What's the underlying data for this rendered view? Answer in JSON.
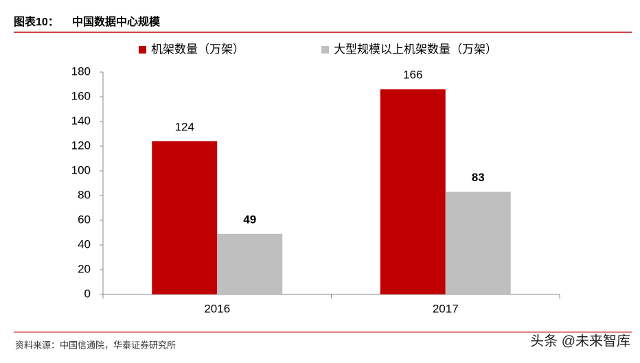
{
  "chart_data": {
    "type": "bar",
    "figure_label": "图表10：",
    "title": "中国数据中心规模",
    "categories": [
      "2016",
      "2017"
    ],
    "series": [
      {
        "name": "机架数量（万架）",
        "color": "#c00000",
        "label_weight": "normal",
        "values": [
          124,
          166
        ]
      },
      {
        "name": "大型规模以上机架数量（万架）",
        "color": "#bfbfbf",
        "label_weight": "bold",
        "values": [
          49,
          83
        ]
      }
    ],
    "ylim": [
      0,
      180
    ],
    "yticks": [
      0,
      20,
      40,
      60,
      80,
      100,
      120,
      140,
      160,
      180
    ],
    "grid": false,
    "legend": "top",
    "source": "资料来源：中国信通院，华泰证券研究所",
    "watermark": "头条 @未来智库"
  }
}
